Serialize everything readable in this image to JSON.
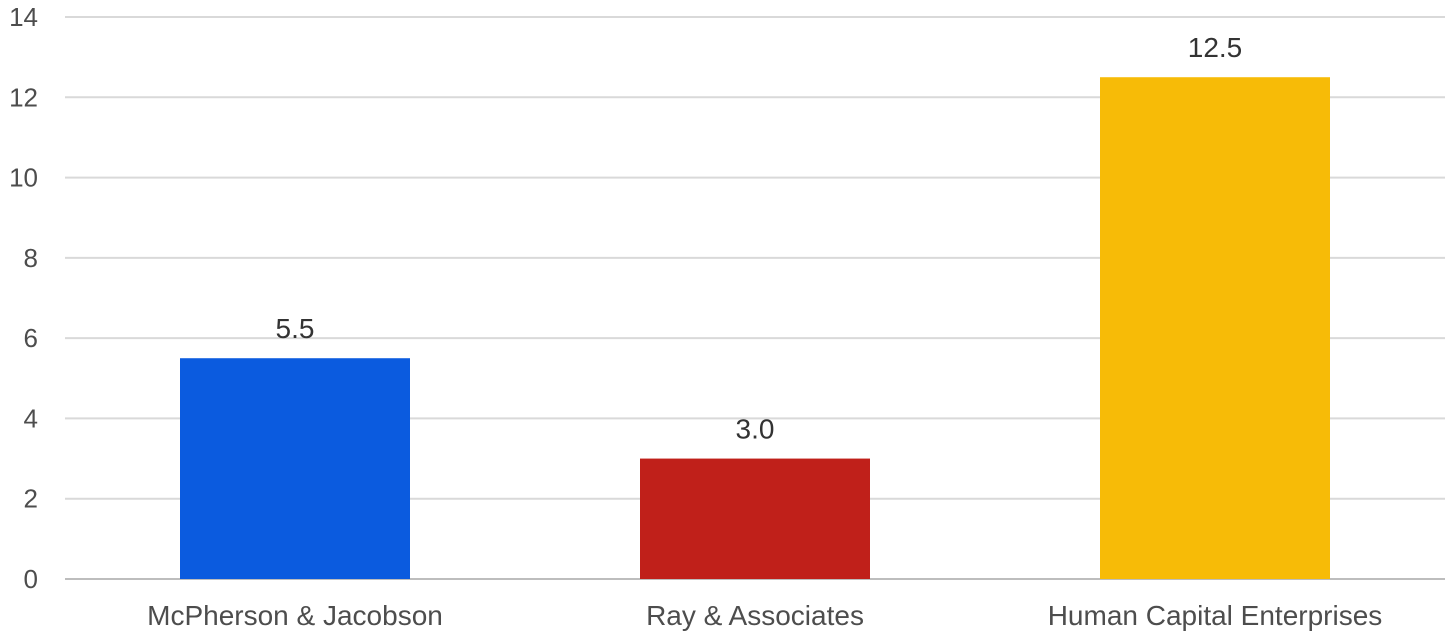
{
  "chart_data": {
    "type": "bar",
    "title": "",
    "xlabel": "",
    "ylabel": "",
    "categories": [
      "McPherson & Jacobson",
      "Ray & Associates",
      "Human Capital Enterprises"
    ],
    "values": [
      5.5,
      3.0,
      12.5
    ],
    "data_labels": [
      "5.5",
      "3.0",
      "12.5"
    ],
    "colors": [
      "#0b5bdf",
      "#c0201a",
      "#f7bb07"
    ],
    "ylim": [
      0,
      14
    ],
    "yticks": [
      0,
      2,
      4,
      6,
      8,
      10,
      12,
      14
    ],
    "ytick_labels": [
      "0",
      "2",
      "4",
      "6",
      "8",
      "10",
      "12",
      "14"
    ],
    "grid": true,
    "legend": "none"
  }
}
